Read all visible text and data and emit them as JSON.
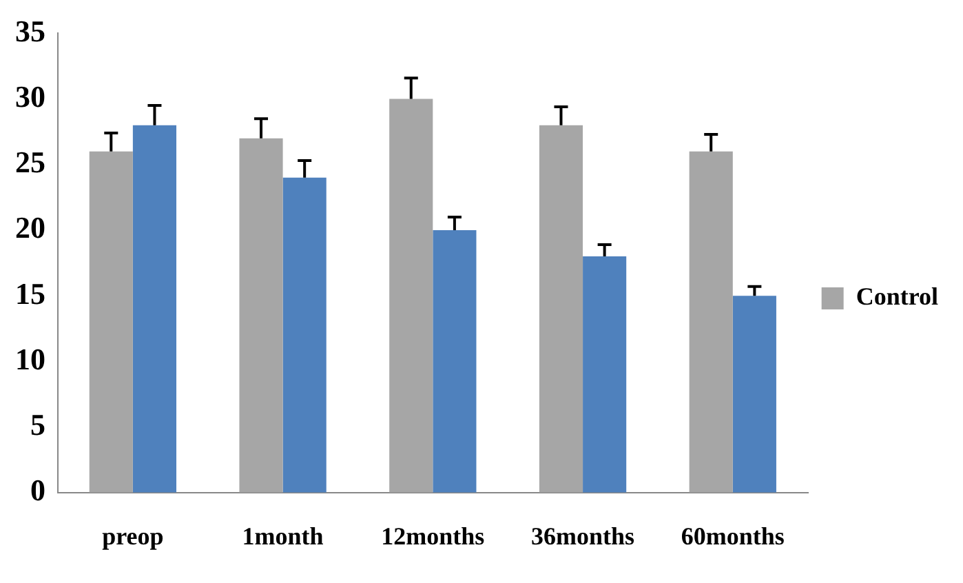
{
  "chart_data": {
    "type": "bar",
    "categories": [
      "preop",
      "1month",
      "12months",
      "36months",
      "60months"
    ],
    "series": [
      {
        "name": "Control",
        "color": "#a6a6a6",
        "values": [
          26,
          27,
          30,
          28,
          26
        ],
        "errors": [
          1.4,
          1.5,
          1.6,
          1.4,
          1.3
        ]
      },
      {
        "color": "#4f81bd",
        "values": [
          28,
          24,
          20,
          18,
          15
        ],
        "errors": [
          1.5,
          1.3,
          1.0,
          0.9,
          0.7
        ]
      }
    ],
    "ylim": [
      0,
      35
    ],
    "yticks": [
      0,
      5,
      10,
      15,
      20,
      25,
      30,
      35
    ],
    "grid": false,
    "legend": "right"
  }
}
